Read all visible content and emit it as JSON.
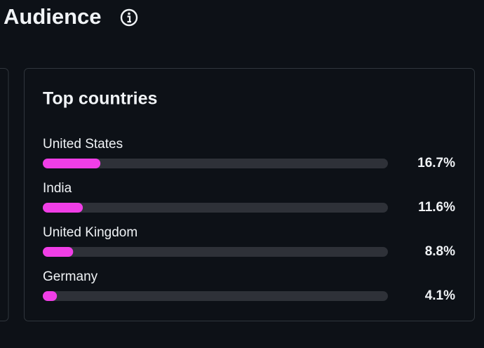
{
  "header": {
    "title": "Audience"
  },
  "chart_data": {
    "type": "bar",
    "orientation": "horizontal",
    "title": "Top countries",
    "categories": [
      "United States",
      "India",
      "United Kingdom",
      "Germany"
    ],
    "values": [
      16.7,
      11.6,
      8.8,
      4.1
    ],
    "value_labels": [
      "16.7%",
      "11.6%",
      "8.8%",
      "4.1%"
    ],
    "xlim": [
      0,
      100
    ],
    "color": "#f03ee6"
  }
}
